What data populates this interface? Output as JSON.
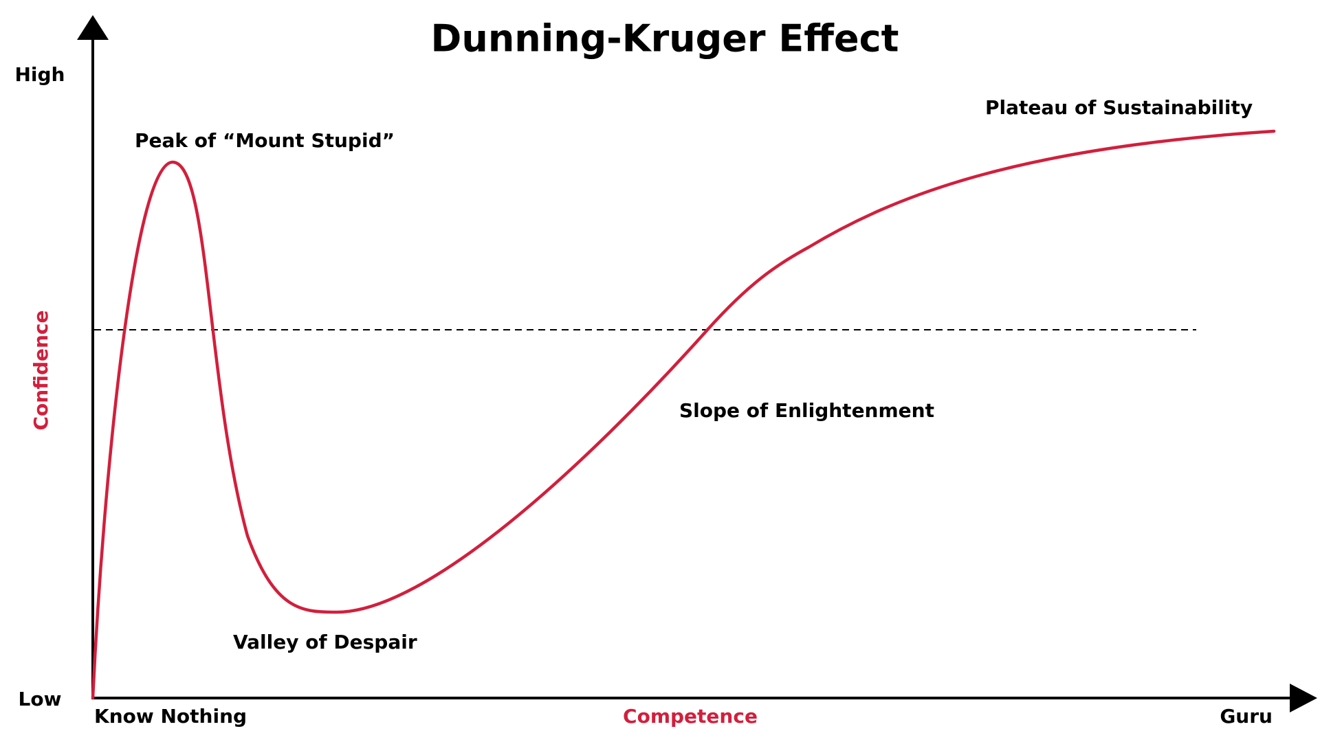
{
  "title": "Dunning-Kruger Effect",
  "y_axis": {
    "label": "Confidence",
    "high": "High",
    "low": "Low"
  },
  "x_axis": {
    "label": "Competence",
    "start": "Know Nothing",
    "end": "Guru"
  },
  "annotations": [
    "Peak of “Mount Stupid”",
    "Valley of Despair",
    "Slope of Enlightenment",
    "Plateau of Sustainability"
  ]
}
